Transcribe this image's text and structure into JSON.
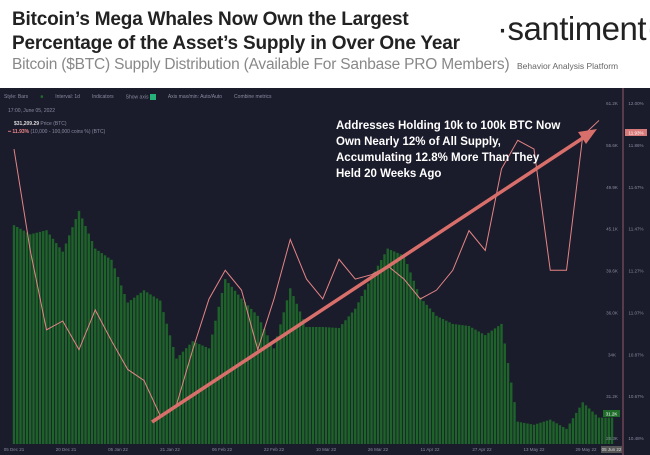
{
  "header": {
    "title": "Bitcoin’s Mega Whales Now Own the Largest Percentage of the Asset’s Supply in Over One Year",
    "subtitle": "Bitcoin ($BTC) Supply Distribution (Available For Sanbase PRO Members)",
    "logo": "·santiment·",
    "tagline": "Behavior Analysis Platform"
  },
  "toolbar": {
    "style": "Style: Bars",
    "interval": "Interval: 1d",
    "indicators": "Indicators",
    "show_axis": "Show axis",
    "axis_max": "Axis max/min: Auto/Auto",
    "combine": "Combine metrics"
  },
  "tooltip": {
    "datetime": "17:00, June 05, 2022",
    "price_value": "$31,209.29",
    "price_label": "Price (BTC)",
    "pct_value": "11.93%",
    "pct_label": "(10,000 - 100,000 coins %) (BTC)"
  },
  "annotation": "Addresses Holding 10k to 100k BTC Now Own Nearly 12% of All Supply, Accumulating 12.8% More Than They Held 20 Weeks Ago",
  "colors": {
    "price_bars": "#1f6b2a",
    "percent_line": "#e58585",
    "arrow": "#d96f6a",
    "background": "#1a1b2b"
  },
  "chart_data": {
    "type": "bar+line",
    "x_ticks": [
      "05 Dec 21",
      "20 Dec 21",
      "05 Jan 22",
      "21 Jan 22",
      "06 Feb 22",
      "22 Feb 22",
      "10 Mar 22",
      "26 Mar 22",
      "11 Apr 22",
      "27 Apr 22",
      "13 May 22",
      "29 May 22"
    ],
    "x_end_label": "05 Jun 22",
    "price_axis": {
      "ticks": [
        "61.2K",
        "55.6K",
        "49.9K",
        "45.1K",
        "39.6K",
        "36.0K",
        "34K",
        "31.2K",
        "28.3K"
      ],
      "range": [
        28.3,
        61.2
      ],
      "current": "31.2K"
    },
    "percent_axis": {
      "ticks": [
        "12.00%",
        "11.86%",
        "11.67%",
        "11.47%",
        "11.27%",
        "11.07%",
        "10.87%",
        "10.67%",
        "10.48%"
      ],
      "range": [
        10.48,
        12.0
      ],
      "current": "11.93%"
    },
    "x": [
      "2021-12-05",
      "2021-12-10",
      "2021-12-15",
      "2021-12-20",
      "2021-12-25",
      "2021-12-30",
      "2022-01-04",
      "2022-01-09",
      "2022-01-14",
      "2022-01-19",
      "2022-01-24",
      "2022-01-29",
      "2022-02-03",
      "2022-02-08",
      "2022-02-13",
      "2022-02-18",
      "2022-02-23",
      "2022-02-28",
      "2022-03-05",
      "2022-03-10",
      "2022-03-15",
      "2022-03-20",
      "2022-03-25",
      "2022-03-30",
      "2022-04-04",
      "2022-04-09",
      "2022-04-14",
      "2022-04-19",
      "2022-04-24",
      "2022-04-29",
      "2022-05-04",
      "2022-05-09",
      "2022-05-14",
      "2022-05-19",
      "2022-05-24",
      "2022-05-29",
      "2022-06-03"
    ],
    "series": [
      {
        "name": "Price (BTC)",
        "type": "bar",
        "unit": "K USD",
        "values": [
          49.4,
          48.5,
          48.9,
          46.8,
          50.8,
          47.1,
          46.0,
          41.8,
          43.0,
          42.0,
          36.3,
          38.0,
          37.3,
          44.1,
          42.2,
          40.5,
          37.3,
          43.2,
          39.4,
          39.4,
          39.3,
          41.2,
          44.3,
          47.1,
          46.4,
          42.3,
          40.5,
          39.7,
          39.5,
          38.6,
          39.7,
          30.1,
          29.8,
          30.3,
          29.4,
          32.0,
          30.5
        ]
      },
      {
        "name": "(10,000 - 100,000 coins %) (BTC)",
        "type": "line",
        "unit": "%",
        "values": [
          11.8,
          11.34,
          10.98,
          11.02,
          10.89,
          11.07,
          10.93,
          10.8,
          10.75,
          10.59,
          10.64,
          10.89,
          11.12,
          11.25,
          11.16,
          10.89,
          11.12,
          11.39,
          11.21,
          11.12,
          11.3,
          11.21,
          11.23,
          11.27,
          11.21,
          11.12,
          11.16,
          11.25,
          11.43,
          11.34,
          11.71,
          11.84,
          11.8,
          11.25,
          11.25,
          11.86,
          11.93
        ]
      }
    ]
  }
}
